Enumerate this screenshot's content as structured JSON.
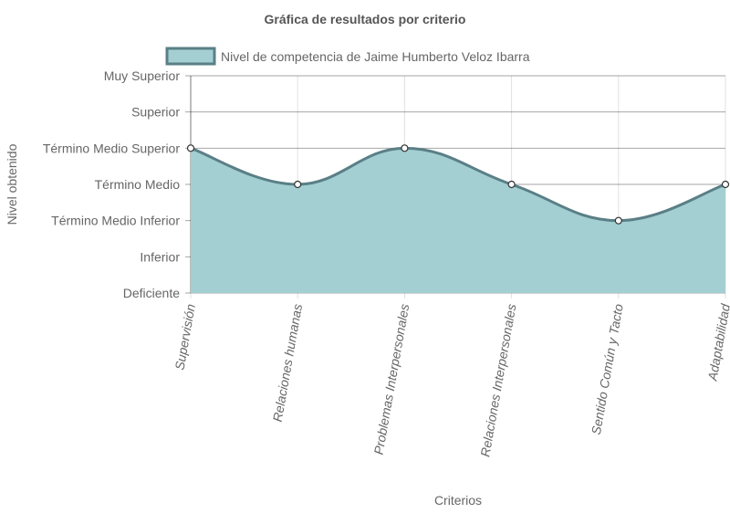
{
  "chart_data": {
    "type": "area",
    "title": "Gráfica de resultados por criterio",
    "xlabel": "Criterios",
    "ylabel": "Nivel obtenido",
    "categories": [
      "Supervisión",
      "Relaciones humanas",
      "Problemas Interpersonales",
      "Relaciones Interpersonales",
      "Sentido Común y Tacto",
      "Adaptabilidad"
    ],
    "y_levels": [
      "Deficiente",
      "Inferior",
      "Término Medio Inferior",
      "Término Medio",
      "Término Medio Superior",
      "Superior",
      "Muy Superior"
    ],
    "series": [
      {
        "name": "Nivel de competencia de Jaime Humberto Veloz Ibarra",
        "values": [
          4,
          3,
          4,
          3,
          2,
          3
        ]
      }
    ],
    "ylim": [
      0,
      6
    ],
    "legend": "top",
    "grid": true,
    "colors": {
      "fill": "#a3ced2",
      "stroke": "#5a7f86",
      "point_fill": "#ffffff",
      "point_stroke": "#333333"
    }
  }
}
